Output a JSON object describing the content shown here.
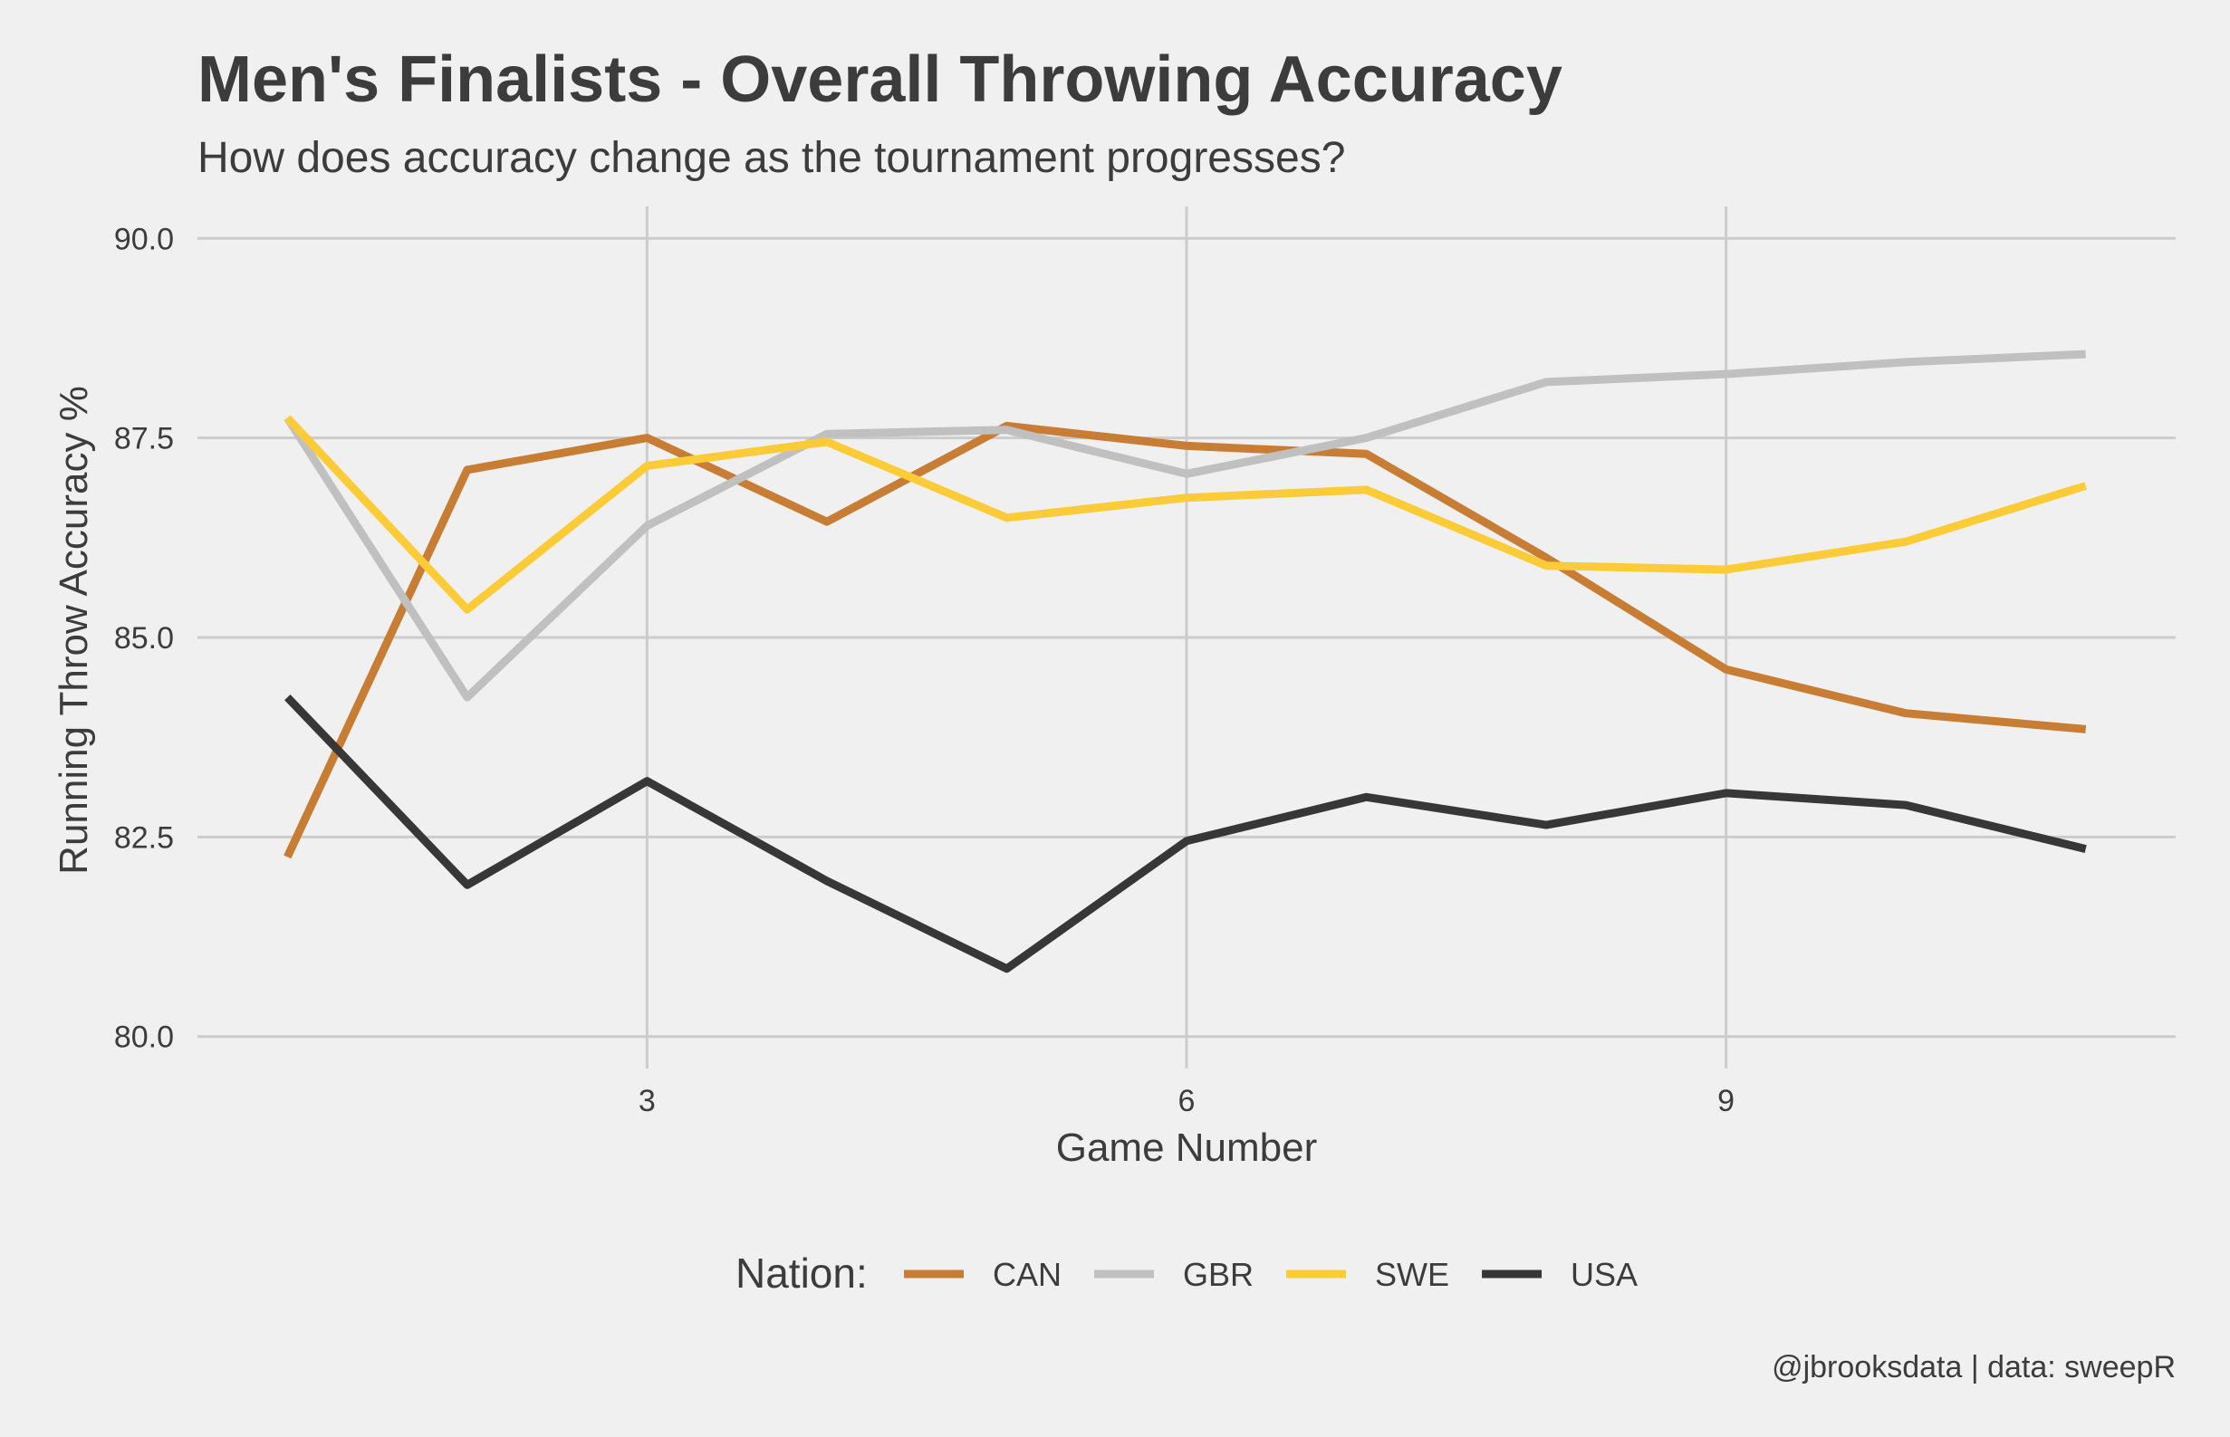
{
  "chart_data": {
    "type": "line",
    "title": "Men's Finalists - Overall Throwing Accuracy",
    "subtitle": "How does accuracy change as the tournament progresses?",
    "xlabel": "Game Number",
    "ylabel": "Running Throw Accuracy %",
    "caption": "@jbrooksdata | data: sweepR",
    "xlim": [
      0.5,
      11.5
    ],
    "ylim": [
      79.6,
      90.4
    ],
    "x_ticks": [
      3,
      6,
      9
    ],
    "x_tick_labels": [
      "3",
      "6",
      "9"
    ],
    "y_ticks": [
      80,
      82.5,
      85,
      87.5,
      90
    ],
    "y_tick_labels": [
      "80.0",
      "82.5",
      "85.0",
      "87.5",
      "90.0"
    ],
    "grid": true,
    "legend": {
      "title": "Nation:",
      "position": "bottom"
    },
    "x": [
      1,
      2,
      3,
      4,
      5,
      6,
      7,
      8,
      9,
      10,
      11
    ],
    "series": [
      {
        "name": "CAN",
        "color": "#c87d35",
        "values": [
          82.25,
          87.1,
          87.5,
          86.45,
          87.65,
          87.4,
          87.3,
          86.0,
          84.6,
          84.05,
          83.85
        ]
      },
      {
        "name": "GBR",
        "color": "#c0c0c0",
        "values": [
          87.75,
          84.25,
          86.4,
          87.55,
          87.6,
          87.05,
          87.5,
          88.2,
          88.3,
          88.45,
          88.55
        ]
      },
      {
        "name": "SWE",
        "color": "#fccb38",
        "values": [
          87.75,
          85.35,
          87.15,
          87.45,
          86.5,
          86.75,
          86.85,
          85.9,
          85.85,
          86.2,
          86.9
        ]
      },
      {
        "name": "USA",
        "color": "#373737",
        "values": [
          84.25,
          81.9,
          83.2,
          81.95,
          80.85,
          82.45,
          83.0,
          82.65,
          83.05,
          82.9,
          82.35
        ]
      }
    ]
  }
}
